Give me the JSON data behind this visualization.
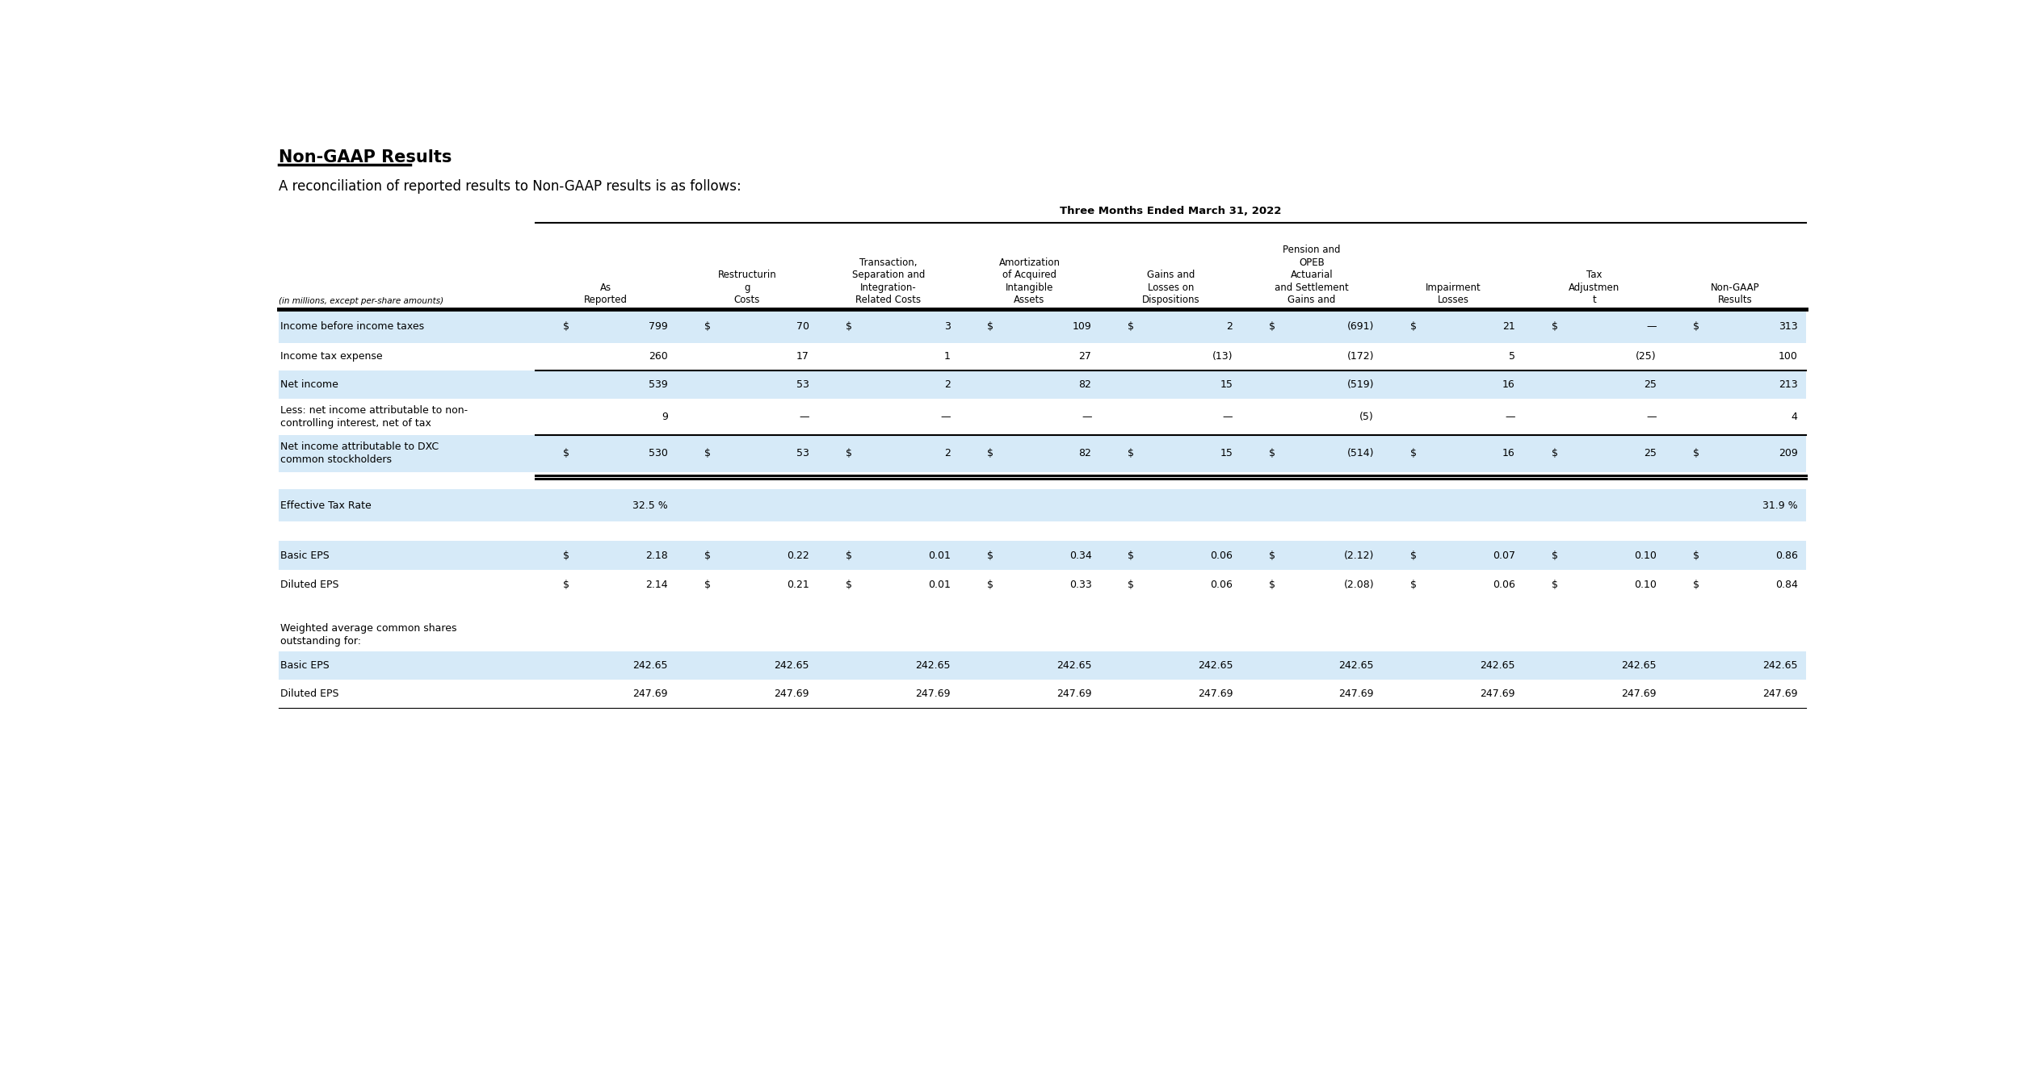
{
  "title": "Non-GAAP Results",
  "subtitle": "A reconciliation of reported results to Non-GAAP results is as follows:",
  "period_header": "Three Months Ended March 31, 2022",
  "col_header_label": "(in millions, except per-share amounts)",
  "columns": [
    "As\nReported",
    "Restructurin\ng\nCosts",
    "Transaction,\nSeparation and\nIntegration-\nRelated Costs",
    "Amortization\nof Acquired\nIntangible\nAssets",
    "Gains and\nLosses on\nDispositions",
    "Pension and\nOPEB\nActuarial\nand Settlement\nGains and",
    "Impairment\nLosses",
    "Tax\nAdjustmen\nt",
    "Non-GAAP\nResults"
  ],
  "rows": [
    {
      "label": "Income before income taxes",
      "dollars": [
        "$",
        "$",
        "$",
        "$",
        "$",
        "$",
        "$",
        "$",
        "$"
      ],
      "values": [
        "799",
        "70",
        "3",
        "109",
        "2",
        "(691)",
        "21",
        "—",
        "313"
      ],
      "bg": "#d6eaf8",
      "bold": false,
      "separator_before": false,
      "double_separator_after": false,
      "tall": false
    },
    {
      "label": "Income tax expense",
      "dollars": [
        "",
        "",
        "",
        "",
        "",
        "",
        "",
        "",
        ""
      ],
      "values": [
        "260",
        "17",
        "1",
        "27",
        "(13)",
        "(172)",
        "5",
        "(25)",
        "100"
      ],
      "bg": "#ffffff",
      "bold": false,
      "separator_before": false,
      "double_separator_after": false,
      "tall": false
    },
    {
      "label": "Net income",
      "dollars": [
        "",
        "",
        "",
        "",
        "",
        "",
        "",
        "",
        ""
      ],
      "values": [
        "539",
        "53",
        "2",
        "82",
        "15",
        "(519)",
        "16",
        "25",
        "213"
      ],
      "bg": "#d6eaf8",
      "bold": false,
      "separator_before": true,
      "double_separator_after": false,
      "tall": false
    },
    {
      "label": "Less: net income attributable to non-\ncontrolling interest, net of tax",
      "dollars": [
        "",
        "",
        "",
        "",
        "",
        "",
        "",
        "",
        ""
      ],
      "values": [
        "9",
        "—",
        "—",
        "—",
        "—",
        "(5)",
        "—",
        "—",
        "4"
      ],
      "bg": "#ffffff",
      "bold": false,
      "separator_before": false,
      "double_separator_after": false,
      "tall": true
    },
    {
      "label": "Net income attributable to DXC\ncommon stockholders",
      "dollars": [
        "$",
        "$",
        "$",
        "$",
        "$",
        "$",
        "$",
        "$",
        "$"
      ],
      "values": [
        "530",
        "53",
        "2",
        "82",
        "15",
        "(514)",
        "16",
        "25",
        "209"
      ],
      "bg": "#d6eaf8",
      "bold": false,
      "separator_before": true,
      "double_separator_after": true,
      "tall": true
    },
    {
      "label": "Effective Tax Rate",
      "dollars": [
        "",
        "",
        "",
        "",
        "",
        "",
        "",
        "",
        ""
      ],
      "values": [
        "32.5 %",
        "",
        "",
        "",
        "",
        "",
        "",
        "",
        "31.9 %"
      ],
      "bg": "#d6eaf8",
      "bold": false,
      "separator_before": false,
      "double_separator_after": false,
      "tall": false,
      "is_tax_rate": true
    },
    {
      "label": "Basic EPS",
      "dollars": [
        "$",
        "$",
        "$",
        "$",
        "$",
        "$",
        "$",
        "$",
        "$"
      ],
      "values": [
        "2.18",
        "0.22",
        "0.01",
        "0.34",
        "0.06",
        "(2.12)",
        "0.07",
        "0.10",
        "0.86"
      ],
      "bg": "#d6eaf8",
      "bold": false,
      "separator_before": false,
      "double_separator_after": false,
      "tall": false
    },
    {
      "label": "Diluted EPS",
      "dollars": [
        "$",
        "$",
        "$",
        "$",
        "$",
        "$",
        "$",
        "$",
        "$"
      ],
      "values": [
        "2.14",
        "0.21",
        "0.01",
        "0.33",
        "0.06",
        "(2.08)",
        "0.06",
        "0.10",
        "0.84"
      ],
      "bg": "#ffffff",
      "bold": false,
      "separator_before": false,
      "double_separator_after": false,
      "tall": false
    },
    {
      "label": "Weighted average common shares\noutstanding for:",
      "dollars": [
        "",
        "",
        "",
        "",
        "",
        "",
        "",
        "",
        ""
      ],
      "values": [
        "",
        "",
        "",
        "",
        "",
        "",
        "",
        "",
        ""
      ],
      "bg": "#ffffff",
      "bold": false,
      "separator_before": false,
      "double_separator_after": false,
      "tall": true,
      "is_section_header": true
    },
    {
      "label": "Basic EPS",
      "dollars": [
        "",
        "",
        "",
        "",
        "",
        "",
        "",
        "",
        ""
      ],
      "values": [
        "242.65",
        "242.65",
        "242.65",
        "242.65",
        "242.65",
        "242.65",
        "242.65",
        "242.65",
        "242.65"
      ],
      "bg": "#d6eaf8",
      "bold": false,
      "separator_before": false,
      "double_separator_after": false,
      "tall": false
    },
    {
      "label": "Diluted EPS",
      "dollars": [
        "",
        "",
        "",
        "",
        "",
        "",
        "",
        "",
        ""
      ],
      "values": [
        "247.69",
        "247.69",
        "247.69",
        "247.69",
        "247.69",
        "247.69",
        "247.69",
        "247.69",
        "247.69"
      ],
      "bg": "#ffffff",
      "bold": false,
      "separator_before": false,
      "double_separator_after": false,
      "tall": false
    }
  ],
  "bg_color": "#ffffff",
  "text_color": "#000000",
  "light_blue": "#d6eaf8",
  "title_fontsize": 15,
  "subtitle_fontsize": 12,
  "cell_fontsize": 9,
  "header_fontsize": 8.5,
  "small_fontsize": 8
}
